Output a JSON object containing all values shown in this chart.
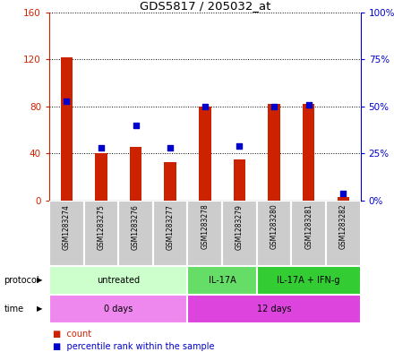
{
  "title": "GDS5817 / 205032_at",
  "samples": [
    "GSM1283274",
    "GSM1283275",
    "GSM1283276",
    "GSM1283277",
    "GSM1283278",
    "GSM1283279",
    "GSM1283280",
    "GSM1283281",
    "GSM1283282"
  ],
  "counts": [
    122,
    40,
    46,
    33,
    80,
    35,
    82,
    82,
    3
  ],
  "percentiles": [
    53,
    28,
    40,
    28,
    50,
    29,
    50,
    51,
    4
  ],
  "ylim_left": [
    0,
    160
  ],
  "ylim_right": [
    0,
    100
  ],
  "yticks_left": [
    0,
    40,
    80,
    120,
    160
  ],
  "yticks_right": [
    0,
    25,
    50,
    75,
    100
  ],
  "ytick_labels_right": [
    "0%",
    "25%",
    "50%",
    "75%",
    "100%"
  ],
  "bar_color": "#cc2200",
  "dot_color": "#0000cc",
  "grid_color": "#000000",
  "protocol_groups": [
    {
      "label": "untreated",
      "start": 0,
      "end": 4,
      "color": "#ccffcc"
    },
    {
      "label": "IL-17A",
      "start": 4,
      "end": 6,
      "color": "#66dd66"
    },
    {
      "label": "IL-17A + IFN-g",
      "start": 6,
      "end": 9,
      "color": "#33cc33"
    }
  ],
  "time_groups": [
    {
      "label": "0 days",
      "start": 0,
      "end": 4,
      "color": "#ee88ee"
    },
    {
      "label": "12 days",
      "start": 4,
      "end": 9,
      "color": "#dd44dd"
    }
  ],
  "protocol_label": "protocol",
  "time_label": "time",
  "legend_count_label": "count",
  "legend_percentile_label": "percentile rank within the sample",
  "bar_width": 0.35,
  "sample_band_color": "#cccccc",
  "background_color": "#ffffff"
}
